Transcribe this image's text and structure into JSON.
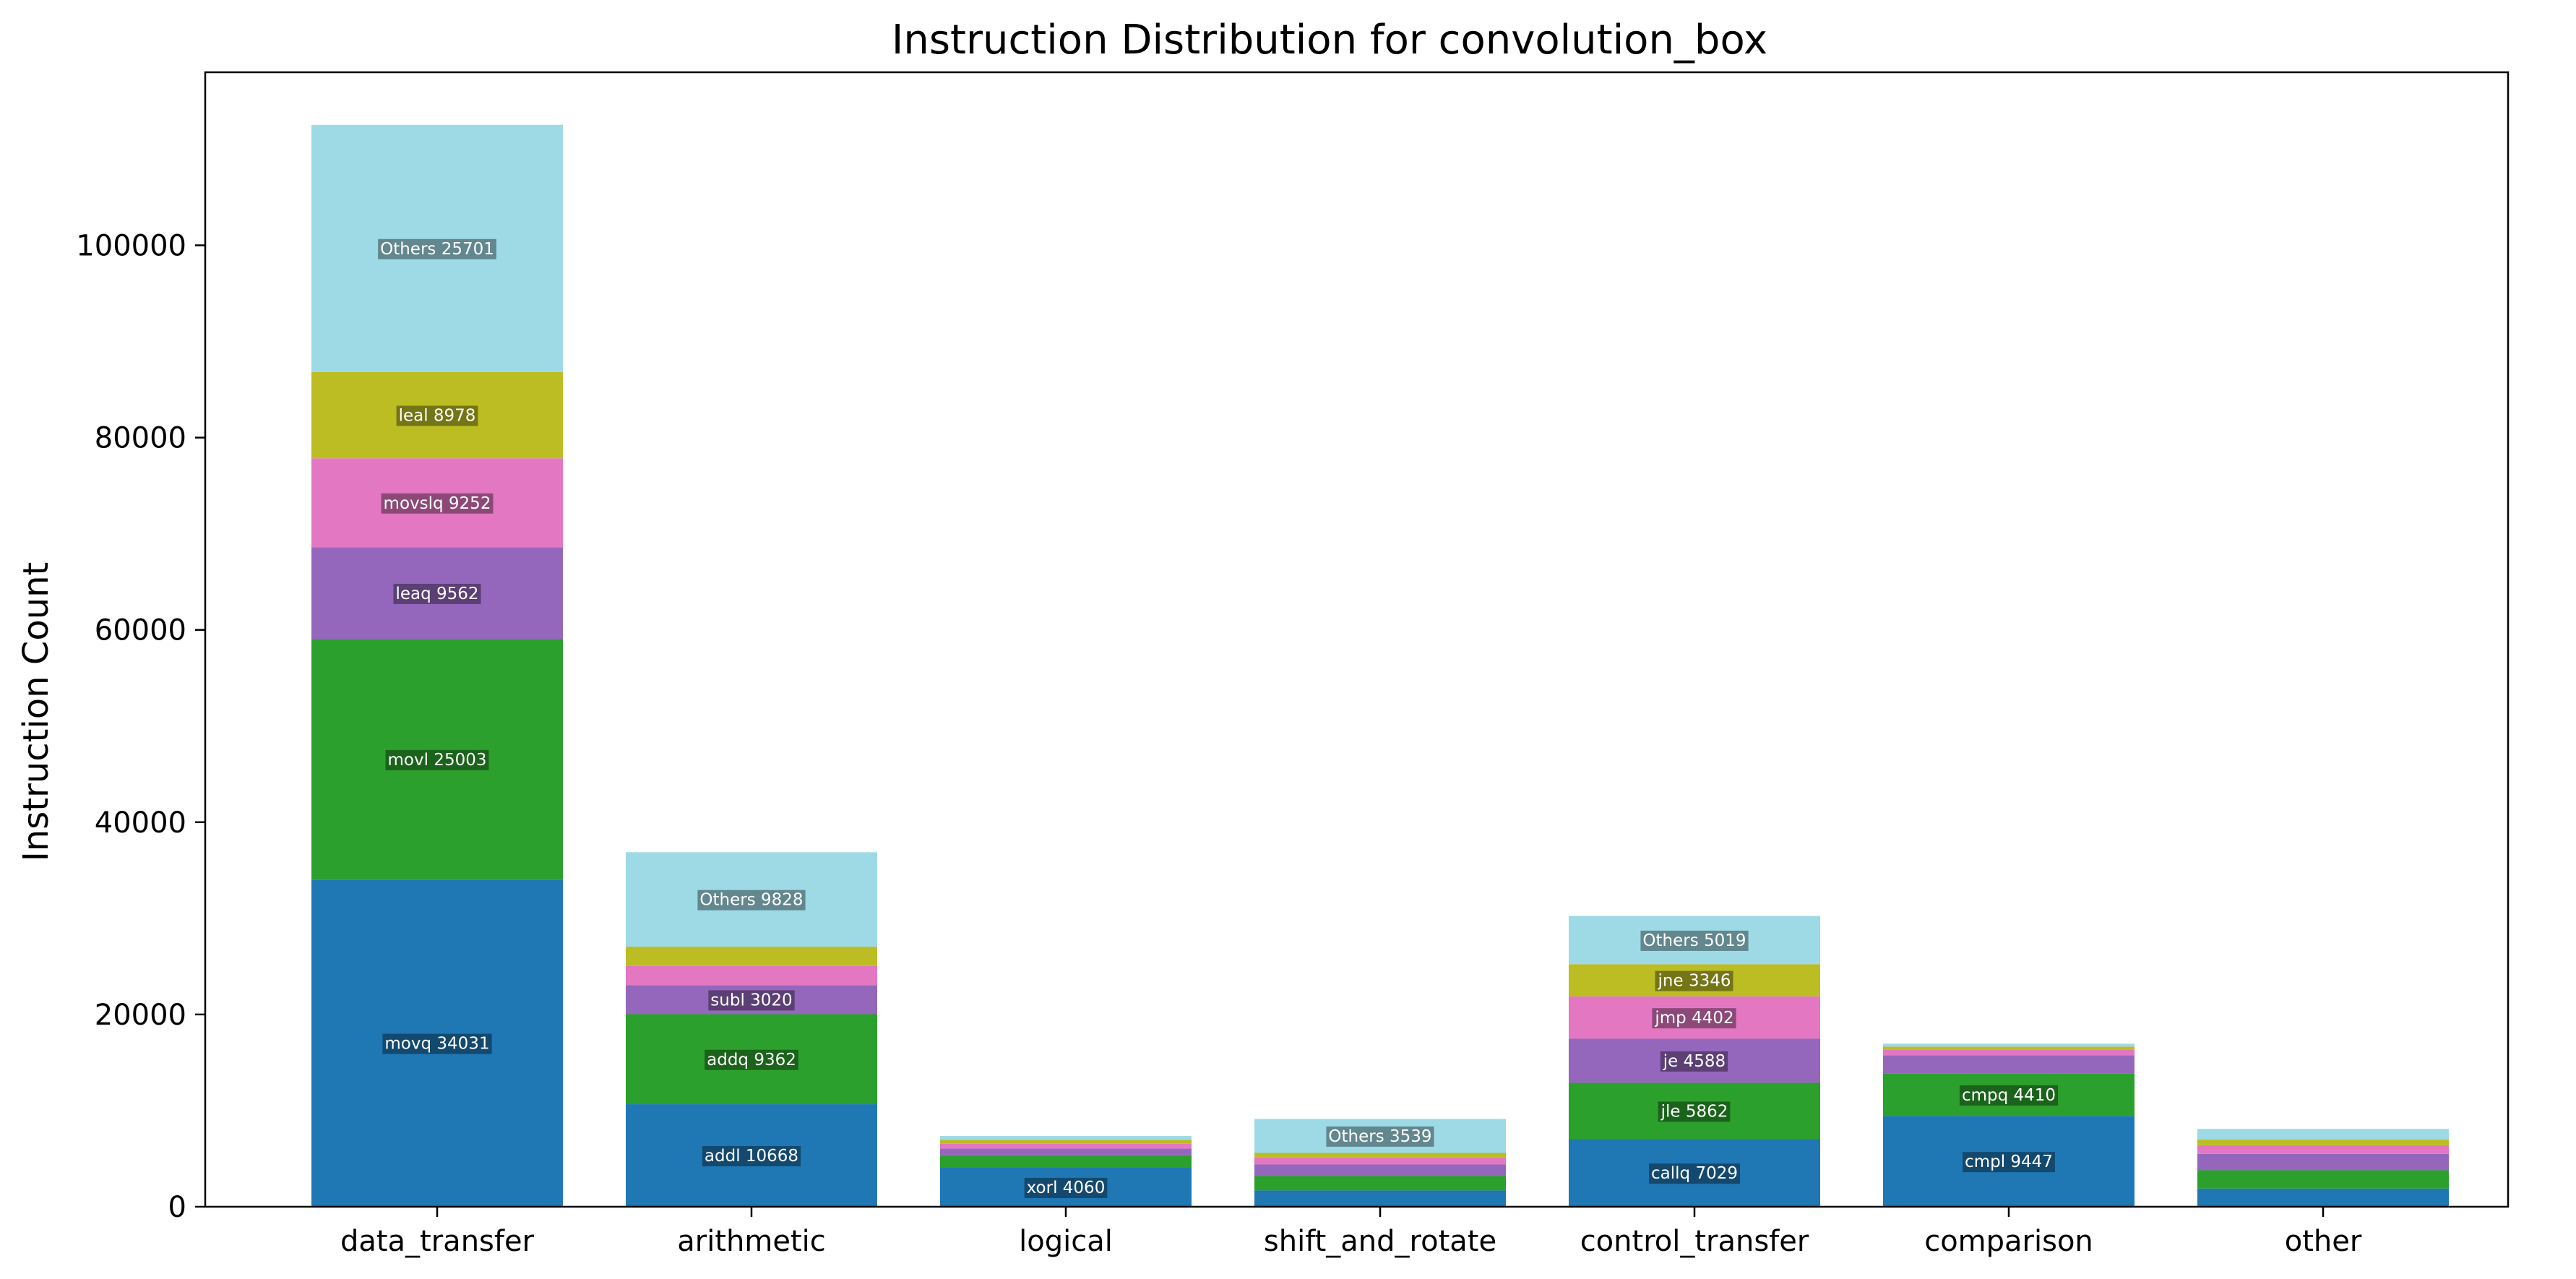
{
  "chart_data": {
    "type": "bar",
    "stacked": true,
    "title": "Instruction Distribution for convolution_box",
    "xlabel": "",
    "ylabel": "Instruction Count",
    "ylim": [
      0,
      118000
    ],
    "yticks": [
      0,
      20000,
      40000,
      60000,
      80000,
      100000
    ],
    "ytick_labels": [
      "0",
      "20000",
      "40000",
      "60000",
      "80000",
      "100000"
    ],
    "grid": false,
    "legend": "none",
    "categories": [
      "data_transfer",
      "arithmetic",
      "logical",
      "shift_and_rotate",
      "control_transfer",
      "comparison",
      "other"
    ],
    "layer_colors": [
      "#1f77b4",
      "#2ca02c",
      "#9467bd",
      "#e377c2",
      "#bcbd22",
      "#9edae5"
    ],
    "bars": [
      {
        "category": "data_transfer",
        "segments": [
          {
            "value": 34031,
            "label": "movq 34031"
          },
          {
            "value": 25003,
            "label": "movl 25003"
          },
          {
            "value": 9562,
            "label": "leaq 9562"
          },
          {
            "value": 9252,
            "label": "movslq 9252"
          },
          {
            "value": 8978,
            "label": "leal 8978"
          },
          {
            "value": 25701,
            "label": "Others 25701"
          }
        ]
      },
      {
        "category": "arithmetic",
        "segments": [
          {
            "value": 10668,
            "label": "addl 10668"
          },
          {
            "value": 9362,
            "label": "addq 9362"
          },
          {
            "value": 3020,
            "label": "subl 3020"
          },
          {
            "value": 2000,
            "label": ""
          },
          {
            "value": 2000,
            "label": ""
          },
          {
            "value": 9828,
            "label": "Others 9828"
          }
        ]
      },
      {
        "category": "logical",
        "segments": [
          {
            "value": 4060,
            "label": "xorl 4060"
          },
          {
            "value": 1300,
            "label": ""
          },
          {
            "value": 700,
            "label": ""
          },
          {
            "value": 500,
            "label": ""
          },
          {
            "value": 400,
            "label": ""
          },
          {
            "value": 400,
            "label": ""
          }
        ]
      },
      {
        "category": "shift_and_rotate",
        "segments": [
          {
            "value": 1700,
            "label": ""
          },
          {
            "value": 1500,
            "label": ""
          },
          {
            "value": 1200,
            "label": ""
          },
          {
            "value": 700,
            "label": ""
          },
          {
            "value": 500,
            "label": ""
          },
          {
            "value": 3539,
            "label": "Others 3539"
          }
        ]
      },
      {
        "category": "control_transfer",
        "segments": [
          {
            "value": 7029,
            "label": "callq 7029"
          },
          {
            "value": 5862,
            "label": "jle 5862"
          },
          {
            "value": 4588,
            "label": "je 4588"
          },
          {
            "value": 4402,
            "label": "jmp 4402"
          },
          {
            "value": 3346,
            "label": "jne 3346"
          },
          {
            "value": 5019,
            "label": "Others 5019"
          }
        ]
      },
      {
        "category": "comparison",
        "segments": [
          {
            "value": 9447,
            "label": "cmpl 9447"
          },
          {
            "value": 4410,
            "label": "cmpq 4410"
          },
          {
            "value": 1900,
            "label": ""
          },
          {
            "value": 600,
            "label": ""
          },
          {
            "value": 300,
            "label": ""
          },
          {
            "value": 300,
            "label": ""
          }
        ]
      },
      {
        "category": "other",
        "segments": [
          {
            "value": 1900,
            "label": ""
          },
          {
            "value": 1900,
            "label": ""
          },
          {
            "value": 1700,
            "label": ""
          },
          {
            "value": 900,
            "label": ""
          },
          {
            "value": 600,
            "label": ""
          },
          {
            "value": 1100,
            "label": ""
          }
        ]
      }
    ]
  }
}
